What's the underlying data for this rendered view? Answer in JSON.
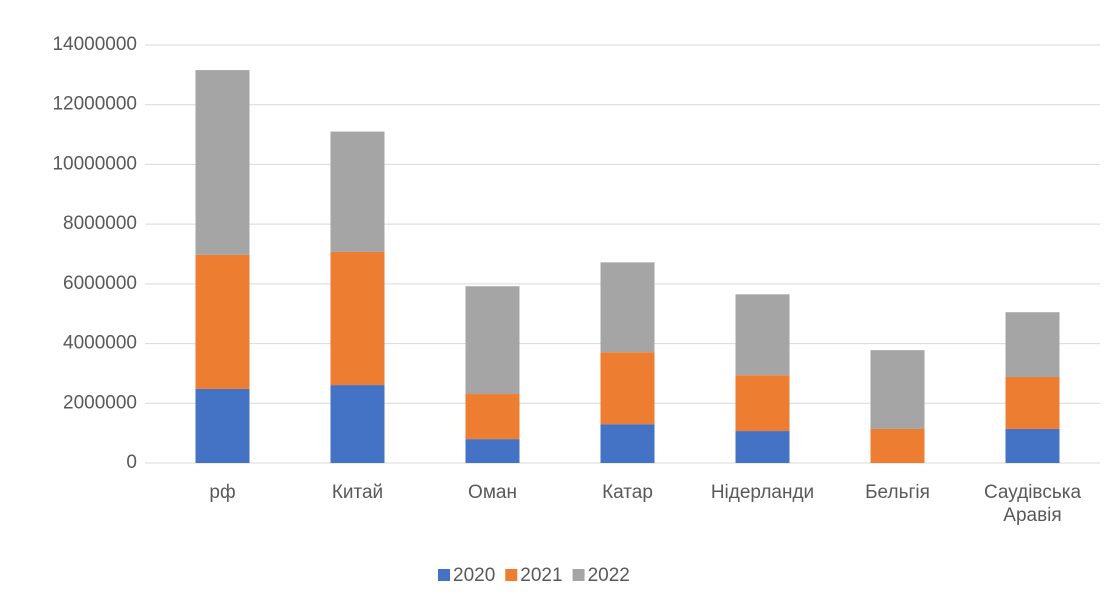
{
  "chart_data": {
    "type": "stacked_bar",
    "categories": [
      "рф",
      "Китай",
      "Оман",
      "Катар",
      "Нідерланди",
      "Бельгія",
      "Саудівська Аравія"
    ],
    "series": [
      {
        "name": "2020",
        "color": "#4472c4",
        "values": [
          2480000,
          2610000,
          800000,
          1300000,
          1070000,
          0,
          1140000
        ]
      },
      {
        "name": "2021",
        "color": "#ed7d31",
        "values": [
          4490000,
          4460000,
          1510000,
          2410000,
          1870000,
          1140000,
          1740000
        ]
      },
      {
        "name": "2022",
        "color": "#a5a5a5",
        "values": [
          6190000,
          4030000,
          3610000,
          3010000,
          2710000,
          2640000,
          2170000
        ]
      }
    ],
    "ylim": [
      0,
      14000000
    ],
    "yticks": [
      0,
      2000000,
      4000000,
      6000000,
      8000000,
      10000000,
      12000000,
      14000000
    ],
    "grid": true,
    "legend": "bottom"
  }
}
